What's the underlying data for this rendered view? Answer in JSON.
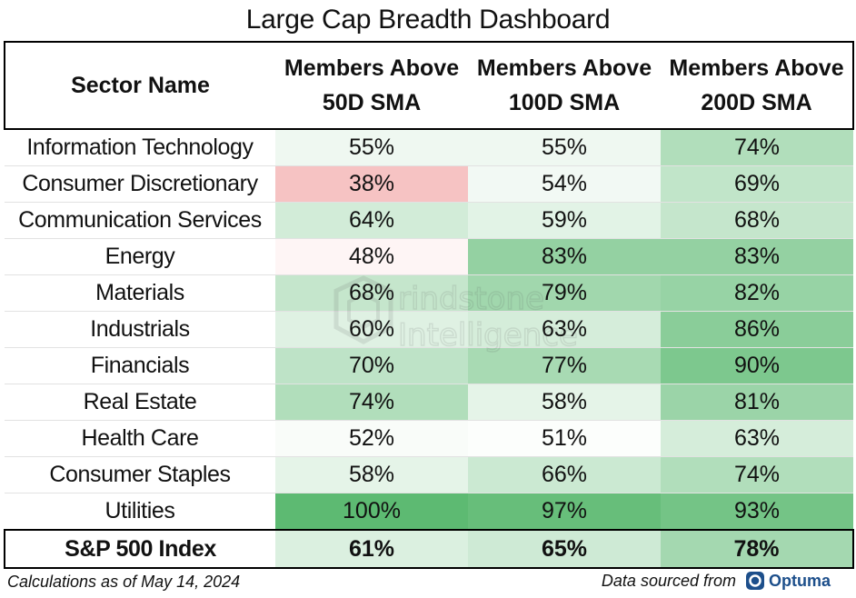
{
  "title": "Large Cap Breadth Dashboard",
  "chart_data": {
    "type": "table",
    "title": "Large Cap Breadth Dashboard",
    "columns": [
      "Sector Name",
      "Members Above 50D SMA",
      "Members Above 100D SMA",
      "Members Above 200D SMA"
    ],
    "header_lines": [
      [
        "Sector Name"
      ],
      [
        "Members Above",
        "50D SMA"
      ],
      [
        "Members Above",
        "100D SMA"
      ],
      [
        "Members Above",
        "200D SMA"
      ]
    ],
    "rows": [
      {
        "sector": "Information Technology",
        "values": [
          55,
          55,
          74
        ]
      },
      {
        "sector": "Consumer Discretionary",
        "values": [
          38,
          54,
          69
        ]
      },
      {
        "sector": "Communication Services",
        "values": [
          64,
          59,
          68
        ]
      },
      {
        "sector": "Energy",
        "values": [
          48,
          83,
          83
        ]
      },
      {
        "sector": "Materials",
        "values": [
          68,
          79,
          82
        ]
      },
      {
        "sector": "Industrials",
        "values": [
          60,
          63,
          86
        ]
      },
      {
        "sector": "Financials",
        "values": [
          70,
          77,
          90
        ]
      },
      {
        "sector": "Real Estate",
        "values": [
          74,
          58,
          81
        ]
      },
      {
        "sector": "Health Care",
        "values": [
          52,
          51,
          63
        ]
      },
      {
        "sector": "Consumer Staples",
        "values": [
          58,
          66,
          74
        ]
      },
      {
        "sector": "Utilities",
        "values": [
          100,
          97,
          93
        ]
      }
    ],
    "total": {
      "sector": "S&P 500 Index",
      "values": [
        61,
        65,
        78
      ]
    },
    "unit": "%",
    "color_scale": {
      "low": "#f4b4b4",
      "mid": "#ffffff",
      "high": "#5dba72",
      "mid_value": 50
    }
  },
  "footer": {
    "left": "Calculations as of May 14, 2024",
    "right": "Data sourced from",
    "logo_text": "Optuma"
  },
  "watermark": {
    "line1": "rindstone",
    "line2": "Intelligence"
  }
}
